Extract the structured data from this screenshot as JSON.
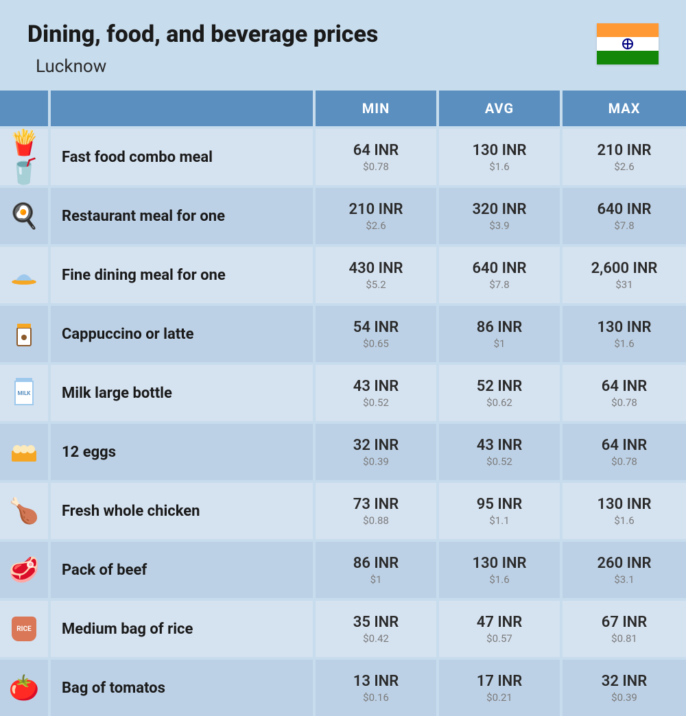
{
  "header": {
    "title": "Dining, food, and beverage prices",
    "location": "Lucknow"
  },
  "columns": {
    "min": "MIN",
    "avg": "AVG",
    "max": "MAX"
  },
  "colors": {
    "page_bg": "#c7dced",
    "header_bg": "#5a8fc0",
    "row_light": "#d5e2f0",
    "row_dark": "#bdd1e6",
    "text_main": "#1a1a1a",
    "text_muted": "#7a7a7a"
  },
  "rows": [
    {
      "icon": "fastfood",
      "name": "Fast food combo meal",
      "min_inr": "64 INR",
      "min_usd": "$0.78",
      "avg_inr": "130 INR",
      "avg_usd": "$1.6",
      "max_inr": "210 INR",
      "max_usd": "$2.6"
    },
    {
      "icon": "restaurant",
      "name": "Restaurant meal for one",
      "min_inr": "210 INR",
      "min_usd": "$2.6",
      "avg_inr": "320 INR",
      "avg_usd": "$3.9",
      "max_inr": "640 INR",
      "max_usd": "$7.8"
    },
    {
      "icon": "finedining",
      "name": "Fine dining meal for one",
      "min_inr": "430 INR",
      "min_usd": "$5.2",
      "avg_inr": "640 INR",
      "avg_usd": "$7.8",
      "max_inr": "2,600 INR",
      "max_usd": "$31"
    },
    {
      "icon": "coffee",
      "name": "Cappuccino or latte",
      "min_inr": "54 INR",
      "min_usd": "$0.65",
      "avg_inr": "86 INR",
      "avg_usd": "$1",
      "max_inr": "130 INR",
      "max_usd": "$1.6"
    },
    {
      "icon": "milk",
      "name": "Milk large bottle",
      "min_inr": "43 INR",
      "min_usd": "$0.52",
      "avg_inr": "52 INR",
      "avg_usd": "$0.62",
      "max_inr": "64 INR",
      "max_usd": "$0.78"
    },
    {
      "icon": "eggs",
      "name": "12 eggs",
      "min_inr": "32 INR",
      "min_usd": "$0.39",
      "avg_inr": "43 INR",
      "avg_usd": "$0.52",
      "max_inr": "64 INR",
      "max_usd": "$0.78"
    },
    {
      "icon": "chicken",
      "name": "Fresh whole chicken",
      "min_inr": "73 INR",
      "min_usd": "$0.88",
      "avg_inr": "95 INR",
      "avg_usd": "$1.1",
      "max_inr": "130 INR",
      "max_usd": "$1.6"
    },
    {
      "icon": "beef",
      "name": "Pack of beef",
      "min_inr": "86 INR",
      "min_usd": "$1",
      "avg_inr": "130 INR",
      "avg_usd": "$1.6",
      "max_inr": "260 INR",
      "max_usd": "$3.1"
    },
    {
      "icon": "rice",
      "name": "Medium bag of rice",
      "min_inr": "35 INR",
      "min_usd": "$0.42",
      "avg_inr": "47 INR",
      "avg_usd": "$0.57",
      "max_inr": "67 INR",
      "max_usd": "$0.81"
    },
    {
      "icon": "tomato",
      "name": "Bag of tomatos",
      "min_inr": "13 INR",
      "min_usd": "$0.16",
      "avg_inr": "17 INR",
      "avg_usd": "$0.21",
      "max_inr": "32 INR",
      "max_usd": "$0.39"
    }
  ]
}
